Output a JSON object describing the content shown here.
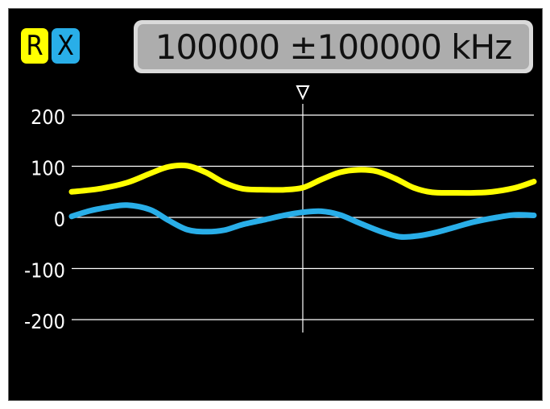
{
  "header": {
    "badge_r": "R",
    "badge_x": "X",
    "frequency_label": "100000 ±100000 kHz"
  },
  "colors": {
    "r_series": "#ffff00",
    "x_series": "#29aee8",
    "grid": "#ffffff",
    "screen_bg": "#000000",
    "freq_box": "#adadad"
  },
  "chart_data": {
    "type": "line",
    "title": "",
    "xlabel": "",
    "ylabel": "",
    "y_ticks": [
      "200",
      "100",
      "0",
      "-100",
      "-200"
    ],
    "ylim": [
      -200,
      200
    ],
    "xlim": [
      0,
      100
    ],
    "center_marker_x": 50,
    "grid": true,
    "series": [
      {
        "name": "R",
        "color": "#ffff00",
        "x": [
          0,
          6,
          12,
          17,
          21,
          25,
          29,
          33,
          37,
          42,
          46,
          50,
          54,
          58,
          62,
          66,
          70,
          74,
          78,
          83,
          87,
          91,
          96,
          100
        ],
        "y": [
          50,
          56,
          68,
          86,
          99,
          101,
          88,
          68,
          56,
          54,
          54,
          58,
          74,
          88,
          93,
          90,
          76,
          58,
          49,
          48,
          48,
          50,
          58,
          70
        ]
      },
      {
        "name": "X",
        "color": "#29aee8",
        "x": [
          0,
          4,
          8,
          12,
          17,
          21,
          25,
          29,
          33,
          37,
          42,
          46,
          50,
          54,
          58,
          62,
          67,
          71,
          75,
          79,
          83,
          87,
          92,
          96,
          100
        ],
        "y": [
          2,
          13,
          20,
          24,
          15,
          -6,
          -24,
          -28,
          -25,
          -14,
          -4,
          4,
          10,
          12,
          5,
          -10,
          -28,
          -38,
          -36,
          -29,
          -19,
          -9,
          0,
          5,
          4
        ]
      }
    ]
  }
}
